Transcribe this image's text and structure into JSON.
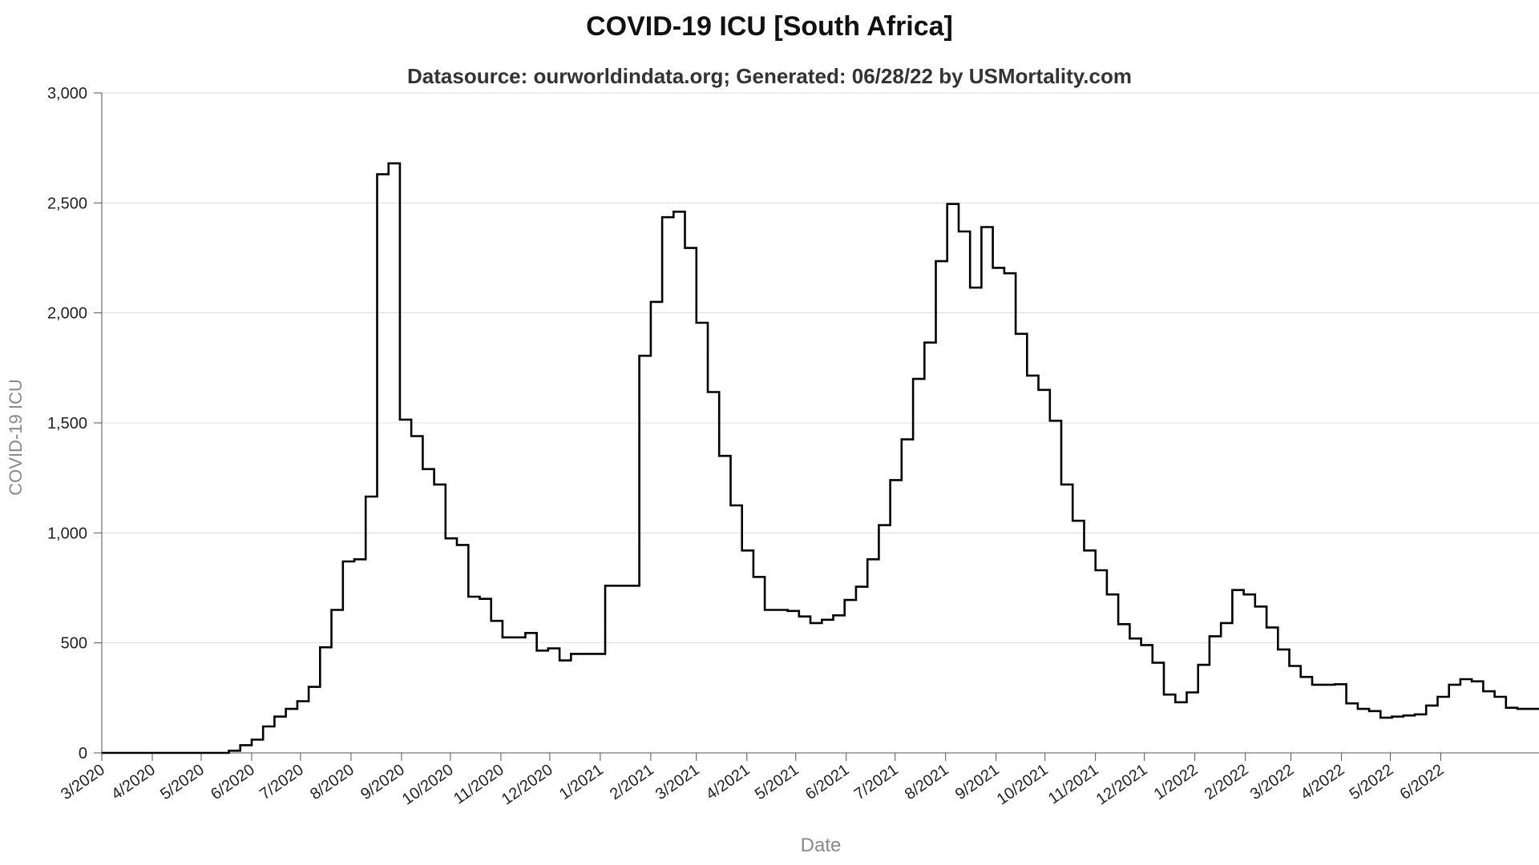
{
  "chart_data": {
    "type": "line",
    "title": "COVID-19 ICU [South Africa]",
    "subtitle": "Datasource: ourworldindata.org; Generated: 06/28/22 by USMortality.com",
    "xlabel": "Date",
    "ylabel": "COVID-19 ICU",
    "x_ticks": [
      "3/2020",
      "4/2020",
      "5/2020",
      "6/2020",
      "7/2020",
      "8/2020",
      "9/2020",
      "10/2020",
      "11/2020",
      "12/2020",
      "1/2021",
      "2/2021",
      "3/2021",
      "4/2021",
      "5/2021",
      "6/2021",
      "7/2021",
      "8/2021",
      "9/2021",
      "10/2021",
      "11/2021",
      "12/2021",
      "1/2022",
      "2/2022",
      "3/2022",
      "4/2022",
      "5/2022",
      "6/2022"
    ],
    "x_range": [
      "2020-03-01",
      "2022-06-28"
    ],
    "ylim": [
      0,
      3000
    ],
    "y_ticks": [
      0,
      500,
      1000,
      1500,
      2000,
      2500,
      3000
    ],
    "y_tick_labels": [
      "0",
      "500",
      "1,000",
      "1,500",
      "2,000",
      "2,500",
      "3,000"
    ],
    "grid": true,
    "line_color": "#000000",
    "series": [
      {
        "points": [
          [
            "2020-03-01",
            0
          ],
          [
            "2020-05-18",
            10
          ],
          [
            "2020-05-25",
            35
          ],
          [
            "2020-06-01",
            60
          ],
          [
            "2020-06-08",
            120
          ],
          [
            "2020-06-15",
            165
          ],
          [
            "2020-06-22",
            200
          ],
          [
            "2020-06-29",
            235
          ],
          [
            "2020-07-06",
            300
          ],
          [
            "2020-07-13",
            480
          ],
          [
            "2020-07-20",
            650
          ],
          [
            "2020-07-27",
            870
          ],
          [
            "2020-08-03",
            880
          ],
          [
            "2020-08-10",
            1165
          ],
          [
            "2020-08-17",
            2630
          ],
          [
            "2020-08-24",
            2680
          ],
          [
            "2020-08-31",
            1515
          ],
          [
            "2020-09-07",
            1440
          ],
          [
            "2020-09-14",
            1290
          ],
          [
            "2020-09-21",
            1220
          ],
          [
            "2020-09-28",
            975
          ],
          [
            "2020-10-05",
            945
          ],
          [
            "2020-10-12",
            710
          ],
          [
            "2020-10-19",
            700
          ],
          [
            "2020-10-26",
            600
          ],
          [
            "2020-11-02",
            525
          ],
          [
            "2020-11-16",
            545
          ],
          [
            "2020-11-23",
            465
          ],
          [
            "2020-11-30",
            475
          ],
          [
            "2020-12-07",
            420
          ],
          [
            "2020-12-14",
            450
          ],
          [
            "2021-01-04",
            760
          ],
          [
            "2021-01-25",
            1805
          ],
          [
            "2021-02-01",
            2050
          ],
          [
            "2021-02-08",
            2435
          ],
          [
            "2021-02-15",
            2460
          ],
          [
            "2021-02-22",
            2295
          ],
          [
            "2021-03-01",
            1955
          ],
          [
            "2021-03-08",
            1640
          ],
          [
            "2021-03-15",
            1350
          ],
          [
            "2021-03-22",
            1125
          ],
          [
            "2021-03-29",
            920
          ],
          [
            "2021-04-05",
            800
          ],
          [
            "2021-04-12",
            650
          ],
          [
            "2021-04-26",
            645
          ],
          [
            "2021-05-03",
            620
          ],
          [
            "2021-05-10",
            590
          ],
          [
            "2021-05-17",
            605
          ],
          [
            "2021-05-24",
            625
          ],
          [
            "2021-05-31",
            695
          ],
          [
            "2021-06-07",
            755
          ],
          [
            "2021-06-14",
            880
          ],
          [
            "2021-06-21",
            1035
          ],
          [
            "2021-06-28",
            1240
          ],
          [
            "2021-07-05",
            1425
          ],
          [
            "2021-07-12",
            1700
          ],
          [
            "2021-07-19",
            1865
          ],
          [
            "2021-07-26",
            2235
          ],
          [
            "2021-08-02",
            2495
          ],
          [
            "2021-08-09",
            2370
          ],
          [
            "2021-08-16",
            2115
          ],
          [
            "2021-08-23",
            2390
          ],
          [
            "2021-08-30",
            2205
          ],
          [
            "2021-09-06",
            2180
          ],
          [
            "2021-09-13",
            1905
          ],
          [
            "2021-09-20",
            1715
          ],
          [
            "2021-09-27",
            1650
          ],
          [
            "2021-10-04",
            1510
          ],
          [
            "2021-10-11",
            1220
          ],
          [
            "2021-10-18",
            1055
          ],
          [
            "2021-10-25",
            920
          ],
          [
            "2021-11-01",
            830
          ],
          [
            "2021-11-08",
            720
          ],
          [
            "2021-11-15",
            585
          ],
          [
            "2021-11-22",
            520
          ],
          [
            "2021-11-29",
            490
          ],
          [
            "2021-12-06",
            410
          ],
          [
            "2021-12-13",
            265
          ],
          [
            "2021-12-20",
            230
          ],
          [
            "2021-12-27",
            275
          ],
          [
            "2022-01-03",
            400
          ],
          [
            "2022-01-10",
            530
          ],
          [
            "2022-01-17",
            590
          ],
          [
            "2022-01-24",
            740
          ],
          [
            "2022-01-31",
            720
          ],
          [
            "2022-02-07",
            665
          ],
          [
            "2022-02-14",
            570
          ],
          [
            "2022-02-21",
            470
          ],
          [
            "2022-02-28",
            395
          ],
          [
            "2022-03-07",
            345
          ],
          [
            "2022-03-14",
            310
          ],
          [
            "2022-03-28",
            312
          ],
          [
            "2022-04-04",
            225
          ],
          [
            "2022-04-11",
            200
          ],
          [
            "2022-04-18",
            190
          ],
          [
            "2022-04-25",
            160
          ],
          [
            "2022-05-02",
            165
          ],
          [
            "2022-05-09",
            170
          ],
          [
            "2022-05-16",
            175
          ],
          [
            "2022-05-23",
            215
          ],
          [
            "2022-05-30",
            255
          ],
          [
            "2022-06-06",
            310
          ],
          [
            "2022-06-13",
            335
          ],
          [
            "2022-06-20",
            325
          ],
          [
            "2022-06-27",
            280
          ],
          [
            "2022-07-04",
            255
          ],
          [
            "2022-07-11",
            205
          ],
          [
            "2022-07-18",
            200
          ]
        ]
      }
    ]
  }
}
